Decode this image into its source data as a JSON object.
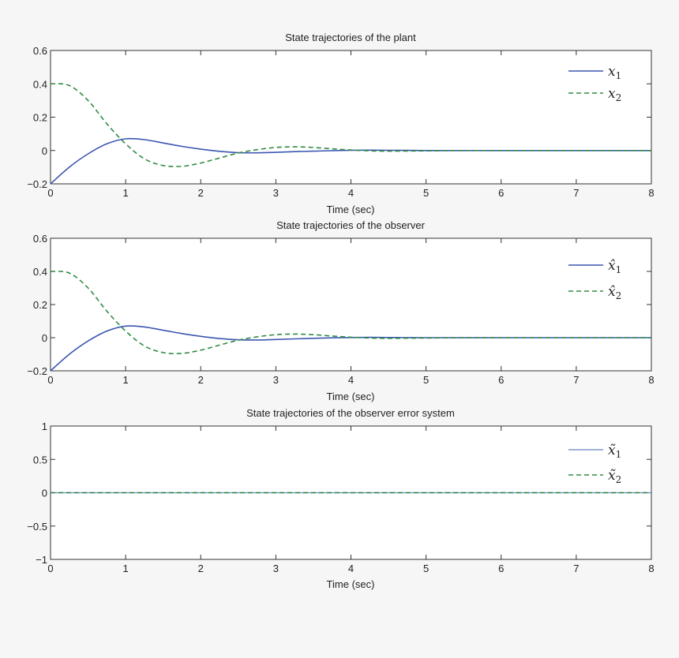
{
  "chart_data": [
    {
      "type": "line",
      "title": "State trajectories of the plant",
      "xlabel": "Time (sec)",
      "ylabel": "",
      "xlim": [
        0,
        8
      ],
      "ylim": [
        -0.2,
        0.6
      ],
      "xticks": [
        "0",
        "1",
        "2",
        "3",
        "4",
        "5",
        "6",
        "7",
        "8"
      ],
      "yticks": [
        "−0.2",
        "0",
        "0.2",
        "0.4",
        "0.6"
      ],
      "ytick_values": [
        -0.2,
        0,
        0.2,
        0.4,
        0.6
      ],
      "legend_position": "top-right",
      "grid": false,
      "x": [
        0,
        0.25,
        0.5,
        0.75,
        1,
        1.25,
        1.5,
        1.75,
        2,
        2.25,
        2.5,
        2.75,
        3,
        3.25,
        3.5,
        3.75,
        4,
        4.25,
        4.5,
        4.75,
        5,
        5.5,
        6,
        6.5,
        7,
        7.5,
        8
      ],
      "series": [
        {
          "name": "x",
          "sub": "1",
          "hat": "",
          "color": "#3b57b0",
          "dash": "solid",
          "values": [
            -0.2,
            -0.1,
            -0.02,
            0.04,
            0.07,
            0.065,
            0.045,
            0.025,
            0.008,
            -0.005,
            -0.013,
            -0.014,
            -0.011,
            -0.007,
            -0.004,
            -0.001,
            0.001,
            0.002,
            0.001,
            0.0005,
            0,
            0,
            0,
            0,
            0,
            0,
            0
          ]
        },
        {
          "name": "x",
          "sub": "2",
          "hat": "",
          "color": "#2e8b43",
          "dash": "dashed",
          "values": [
            0.4,
            0.39,
            0.3,
            0.16,
            0.04,
            -0.05,
            -0.09,
            -0.095,
            -0.075,
            -0.045,
            -0.015,
            0.005,
            0.018,
            0.022,
            0.018,
            0.01,
            0.003,
            -0.002,
            -0.004,
            -0.003,
            -0.002,
            0,
            0,
            0,
            0,
            0,
            0
          ]
        }
      ]
    },
    {
      "type": "line",
      "title": "State trajectories of the observer",
      "xlabel": "Time (sec)",
      "ylabel": "",
      "xlim": [
        0,
        8
      ],
      "ylim": [
        -0.2,
        0.6
      ],
      "xticks": [
        "0",
        "1",
        "2",
        "3",
        "4",
        "5",
        "6",
        "7",
        "8"
      ],
      "yticks": [
        "−0.2",
        "0",
        "0.2",
        "0.4",
        "0.6"
      ],
      "ytick_values": [
        -0.2,
        0,
        0.2,
        0.4,
        0.6
      ],
      "legend_position": "top-right",
      "grid": false,
      "x": [
        0,
        0.25,
        0.5,
        0.75,
        1,
        1.25,
        1.5,
        1.75,
        2,
        2.25,
        2.5,
        2.75,
        3,
        3.25,
        3.5,
        3.75,
        4,
        4.25,
        4.5,
        4.75,
        5,
        5.5,
        6,
        6.5,
        7,
        7.5,
        8
      ],
      "series": [
        {
          "name": "x",
          "sub": "1",
          "hat": "̂",
          "color": "#3b57b0",
          "dash": "solid",
          "values": [
            -0.2,
            -0.1,
            -0.02,
            0.04,
            0.07,
            0.065,
            0.045,
            0.025,
            0.008,
            -0.005,
            -0.013,
            -0.014,
            -0.011,
            -0.007,
            -0.004,
            -0.001,
            0.001,
            0.002,
            0.001,
            0.0005,
            0,
            0,
            0,
            0,
            0,
            0,
            0
          ]
        },
        {
          "name": "x",
          "sub": "2",
          "hat": "̂",
          "color": "#2e8b43",
          "dash": "dashed",
          "values": [
            0.4,
            0.39,
            0.3,
            0.16,
            0.04,
            -0.05,
            -0.09,
            -0.095,
            -0.075,
            -0.045,
            -0.015,
            0.005,
            0.018,
            0.022,
            0.018,
            0.01,
            0.003,
            -0.002,
            -0.004,
            -0.003,
            -0.002,
            0,
            0,
            0,
            0,
            0,
            0
          ]
        }
      ]
    },
    {
      "type": "line",
      "title": "State trajectories of the observer error system",
      "xlabel": "Time (sec)",
      "ylabel": "",
      "xlim": [
        0,
        8
      ],
      "ylim": [
        -1,
        1
      ],
      "xticks": [
        "0",
        "1",
        "2",
        "3",
        "4",
        "5",
        "6",
        "7",
        "8"
      ],
      "yticks": [
        "−1",
        "−0.5",
        "0",
        "0.5",
        "1"
      ],
      "ytick_values": [
        -1,
        -0.5,
        0,
        0.5,
        1
      ],
      "legend_position": "top-right",
      "grid": false,
      "x": [
        0,
        1,
        2,
        3,
        4,
        5,
        6,
        7,
        8
      ],
      "series": [
        {
          "name": "x",
          "sub": "1",
          "hat": "̃",
          "color": "#8098cc",
          "dash": "solid",
          "values": [
            0,
            0,
            0,
            0,
            0,
            0,
            0,
            0,
            0
          ]
        },
        {
          "name": "x",
          "sub": "2",
          "hat": "̃",
          "color": "#2e8b43",
          "dash": "dashed",
          "values": [
            0,
            0,
            0,
            0,
            0,
            0,
            0,
            0,
            0
          ]
        }
      ]
    }
  ]
}
